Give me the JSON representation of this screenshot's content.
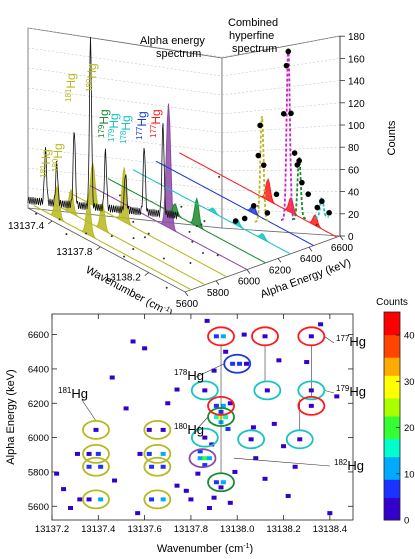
{
  "chart_data": [
    {
      "type": "area",
      "panel": "top-3d",
      "annotations": {
        "alpha_spectrum_line1": "Alpha energy",
        "alpha_spectrum_line2": "spectrum",
        "combined_line1": "Combined",
        "combined_line2": "hyperfine",
        "combined_line3": "spectrum"
      },
      "x_axis": {
        "label": "Wavenumber (cm",
        "label_sup": "-1",
        "label_close": ")",
        "ticks": [
          "13137.4",
          "13137.8",
          "13138.2"
        ]
      },
      "y_axis": {
        "label": "Alpha Energy (keV)",
        "ticks": [
          "5600",
          "5800",
          "6000",
          "6200",
          "6400",
          "6600"
        ]
      },
      "z_axis": {
        "label": "Counts",
        "ticks": [
          "0",
          "20",
          "40",
          "60",
          "80",
          "100",
          "120",
          "140",
          "160",
          "180"
        ],
        "range": [
          0,
          180
        ]
      },
      "isotope_labels": [
        "181Hg",
        "180Hg",
        "181Hg",
        "180Hg",
        "179Hg",
        "179Hg",
        "178Hg",
        "177Hg",
        "177Hg"
      ],
      "series": [
        {
          "color": "#b8b820",
          "alpha_energy": 5640
        },
        {
          "color": "#b8b820",
          "alpha_energy": 5730
        },
        {
          "color": "#b8b820",
          "alpha_energy": 5870
        },
        {
          "color": "#8d4aa6",
          "alpha_energy": 6000
        },
        {
          "color": "#1c8a2e",
          "alpha_energy": 6120
        },
        {
          "color": "#17c3c3",
          "alpha_energy": 6280
        },
        {
          "color": "#1a38d6",
          "alpha_energy": 6430
        },
        {
          "color": "#ff1a1a",
          "alpha_energy": 6580
        }
      ],
      "combined_peaks": [
        {
          "wavenumber": 13137.64,
          "counts": 105,
          "fit_color": "#b8b820"
        },
        {
          "wavenumber": 13137.93,
          "counts": 172,
          "fit_color": "#cc22cc"
        },
        {
          "wavenumber": 13138.05,
          "counts": 62,
          "fit_color": "#1c8a2e"
        },
        {
          "wavenumber": 13138.3,
          "counts": 20,
          "fit_color": "#17c3c3"
        }
      ]
    },
    {
      "type": "heatmap",
      "panel": "bottom-2d",
      "xlabel": "Wavenumber (cm",
      "xlabel_sup": "-1",
      "xlabel_close": ")",
      "ylabel": "Alpha Energy (keV)",
      "xlim": [
        13137.2,
        13138.5
      ],
      "ylim": [
        5520,
        6720
      ],
      "x_ticks": [
        "13137.2",
        "13137.4",
        "13137.6",
        "13137.8",
        "13138.0",
        "13138.2",
        "13138.4"
      ],
      "y_ticks": [
        "5600",
        "5800",
        "6000",
        "6200",
        "6400",
        "6600"
      ],
      "colorbar": {
        "title": "Counts",
        "ticks": [
          "0",
          "10",
          "20",
          "30",
          "40"
        ],
        "range": [
          0,
          45
        ],
        "colors": [
          "#3300cc",
          "#1a33ff",
          "#00aaff",
          "#00ffcc",
          "#33ff33",
          "#aaff00",
          "#ffff00",
          "#ffaa00",
          "#ff4400",
          "#ff0000"
        ]
      },
      "labels": [
        {
          "mass": "177",
          "element": "Hg"
        },
        {
          "mass": "178",
          "element": "Hg"
        },
        {
          "mass": "179",
          "element": "Hg"
        },
        {
          "mass": "180",
          "element": "Hg"
        },
        {
          "mass": "181",
          "element": "Hg"
        },
        {
          "mass": "182",
          "element": "Hg"
        }
      ],
      "circles": [
        {
          "x": 13137.39,
          "y": 6045,
          "isotope": "181",
          "color": "#b8b820"
        },
        {
          "x": 13137.39,
          "y": 5905,
          "isotope": "181",
          "color": "#b8b820"
        },
        {
          "x": 13137.39,
          "y": 5830,
          "isotope": "181",
          "color": "#b8b820"
        },
        {
          "x": 13137.39,
          "y": 5640,
          "isotope": "181",
          "color": "#b8b820"
        },
        {
          "x": 13137.655,
          "y": 6045,
          "isotope": "181",
          "color": "#b8b820"
        },
        {
          "x": 13137.655,
          "y": 5905,
          "isotope": "181",
          "color": "#b8b820"
        },
        {
          "x": 13137.655,
          "y": 5830,
          "isotope": "181",
          "color": "#b8b820"
        },
        {
          "x": 13137.655,
          "y": 5640,
          "isotope": "181",
          "color": "#b8b820"
        },
        {
          "x": 13137.85,
          "y": 5880,
          "isotope": "180",
          "color": "#8d4aa6"
        },
        {
          "x": 13137.93,
          "y": 6120,
          "isotope": "180",
          "color": "#1c8a2e"
        },
        {
          "x": 13137.93,
          "y": 5740,
          "isotope": "180",
          "color": "#1c8a2e"
        },
        {
          "x": 13137.86,
          "y": 6000,
          "isotope": "179",
          "color": "#17c3c3"
        },
        {
          "x": 13137.86,
          "y": 6275,
          "isotope": "179",
          "color": "#17c3c3"
        },
        {
          "x": 13138.06,
          "y": 5990,
          "isotope": "179",
          "color": "#17c3c3"
        },
        {
          "x": 13138.13,
          "y": 6275,
          "isotope": "179",
          "color": "#17c3c3"
        },
        {
          "x": 13138.32,
          "y": 6275,
          "isotope": "179",
          "color": "#17c3c3"
        },
        {
          "x": 13138.27,
          "y": 5990,
          "isotope": "179",
          "color": "#17c3c3"
        },
        {
          "x": 13138.0,
          "y": 6430,
          "isotope": "178",
          "color": "#1a38d6"
        },
        {
          "x": 13137.93,
          "y": 6590,
          "isotope": "177",
          "color": "#ff1a1a"
        },
        {
          "x": 13137.93,
          "y": 6185,
          "isotope": "177",
          "color": "#ff1a1a"
        },
        {
          "x": 13138.12,
          "y": 6590,
          "isotope": "177",
          "color": "#ff1a1a"
        },
        {
          "x": 13138.32,
          "y": 6590,
          "isotope": "177",
          "color": "#ff1a1a"
        },
        {
          "x": 13138.32,
          "y": 6185,
          "isotope": "177",
          "color": "#ff1a1a"
        }
      ],
      "cells": [
        {
          "x": 13137.39,
          "y": 6045,
          "counts": 3
        },
        {
          "x": 13137.36,
          "y": 5905,
          "counts": 4
        },
        {
          "x": 13137.4,
          "y": 5905,
          "counts": 8
        },
        {
          "x": 13137.36,
          "y": 5830,
          "counts": 5
        },
        {
          "x": 13137.41,
          "y": 5830,
          "counts": 7
        },
        {
          "x": 13137.36,
          "y": 5640,
          "counts": 4
        },
        {
          "x": 13137.41,
          "y": 5640,
          "counts": 9
        },
        {
          "x": 13137.31,
          "y": 5905,
          "counts": 2
        },
        {
          "x": 13137.32,
          "y": 5640,
          "counts": 2
        },
        {
          "x": 13137.62,
          "y": 6045,
          "counts": 3
        },
        {
          "x": 13137.68,
          "y": 6045,
          "counts": 4
        },
        {
          "x": 13137.62,
          "y": 5905,
          "counts": 6
        },
        {
          "x": 13137.68,
          "y": 5905,
          "counts": 9
        },
        {
          "x": 13137.63,
          "y": 5830,
          "counts": 5
        },
        {
          "x": 13137.68,
          "y": 5830,
          "counts": 8
        },
        {
          "x": 13137.63,
          "y": 5640,
          "counts": 6
        },
        {
          "x": 13137.68,
          "y": 5640,
          "counts": 10
        },
        {
          "x": 13137.58,
          "y": 5905,
          "counts": 2
        },
        {
          "x": 13137.84,
          "y": 5880,
          "counts": 12
        },
        {
          "x": 13137.86,
          "y": 5880,
          "counts": 20
        },
        {
          "x": 13137.88,
          "y": 5880,
          "counts": 10
        },
        {
          "x": 13137.86,
          "y": 5840,
          "counts": 6
        },
        {
          "x": 13137.84,
          "y": 5920,
          "counts": 5
        },
        {
          "x": 13137.91,
          "y": 6120,
          "counts": 15
        },
        {
          "x": 13137.93,
          "y": 6120,
          "counts": 28
        },
        {
          "x": 13137.95,
          "y": 6120,
          "counts": 14
        },
        {
          "x": 13137.93,
          "y": 6090,
          "counts": 9
        },
        {
          "x": 13137.93,
          "y": 6150,
          "counts": 8
        },
        {
          "x": 13137.91,
          "y": 5740,
          "counts": 6
        },
        {
          "x": 13137.94,
          "y": 5740,
          "counts": 11
        },
        {
          "x": 13137.93,
          "y": 5710,
          "counts": 4
        },
        {
          "x": 13137.86,
          "y": 6000,
          "counts": 3
        },
        {
          "x": 13137.86,
          "y": 6275,
          "counts": 3
        },
        {
          "x": 13138.06,
          "y": 5990,
          "counts": 3
        },
        {
          "x": 13138.13,
          "y": 6275,
          "counts": 4
        },
        {
          "x": 13138.32,
          "y": 6275,
          "counts": 3
        },
        {
          "x": 13138.27,
          "y": 5990,
          "counts": 3
        },
        {
          "x": 13137.98,
          "y": 6430,
          "counts": 5
        },
        {
          "x": 13138.01,
          "y": 6430,
          "counts": 8
        },
        {
          "x": 13138.04,
          "y": 6430,
          "counts": 4
        },
        {
          "x": 13137.91,
          "y": 6590,
          "counts": 5
        },
        {
          "x": 13137.94,
          "y": 6590,
          "counts": 9
        },
        {
          "x": 13137.91,
          "y": 6185,
          "counts": 6
        },
        {
          "x": 13137.94,
          "y": 6185,
          "counts": 10
        },
        {
          "x": 13138.12,
          "y": 6590,
          "counts": 4
        },
        {
          "x": 13138.32,
          "y": 6590,
          "counts": 3
        },
        {
          "x": 13138.32,
          "y": 6185,
          "counts": 4
        },
        {
          "x": 13137.22,
          "y": 5790,
          "counts": 2
        },
        {
          "x": 13137.28,
          "y": 5590,
          "counts": 2
        },
        {
          "x": 13137.47,
          "y": 5750,
          "counts": 2
        },
        {
          "x": 13137.52,
          "y": 6170,
          "counts": 2
        },
        {
          "x": 13137.55,
          "y": 6560,
          "counts": 2
        },
        {
          "x": 13137.46,
          "y": 6350,
          "counts": 2
        },
        {
          "x": 13137.6,
          "y": 6520,
          "counts": 2
        },
        {
          "x": 13137.74,
          "y": 5720,
          "counts": 3
        },
        {
          "x": 13137.78,
          "y": 5690,
          "counts": 2
        },
        {
          "x": 13137.8,
          "y": 5640,
          "counts": 3
        },
        {
          "x": 13137.83,
          "y": 5790,
          "counts": 4
        },
        {
          "x": 13137.88,
          "y": 5590,
          "counts": 3
        },
        {
          "x": 13137.9,
          "y": 5650,
          "counts": 4
        },
        {
          "x": 13137.97,
          "y": 5620,
          "counts": 3
        },
        {
          "x": 13137.99,
          "y": 5800,
          "counts": 3
        },
        {
          "x": 13137.89,
          "y": 5960,
          "counts": 4
        },
        {
          "x": 13137.96,
          "y": 6050,
          "counts": 5
        },
        {
          "x": 13137.97,
          "y": 6200,
          "counts": 4
        },
        {
          "x": 13137.9,
          "y": 6390,
          "counts": 3
        },
        {
          "x": 13137.95,
          "y": 6500,
          "counts": 2
        },
        {
          "x": 13138.03,
          "y": 6600,
          "counts": 2
        },
        {
          "x": 13138.08,
          "y": 5880,
          "counts": 2
        },
        {
          "x": 13138.12,
          "y": 5760,
          "counts": 2
        },
        {
          "x": 13138.16,
          "y": 6080,
          "counts": 2
        },
        {
          "x": 13138.22,
          "y": 5660,
          "counts": 2
        },
        {
          "x": 13138.25,
          "y": 5830,
          "counts": 2
        },
        {
          "x": 13138.3,
          "y": 6440,
          "counts": 2
        },
        {
          "x": 13138.36,
          "y": 6660,
          "counts": 2
        },
        {
          "x": 13138.4,
          "y": 5560,
          "counts": 2
        },
        {
          "x": 13138.43,
          "y": 6240,
          "counts": 2
        },
        {
          "x": 13137.25,
          "y": 5700,
          "counts": 2
        },
        {
          "x": 13137.7,
          "y": 6200,
          "counts": 2
        },
        {
          "x": 13137.74,
          "y": 6280,
          "counts": 2
        },
        {
          "x": 13138.18,
          "y": 6450,
          "counts": 2
        },
        {
          "x": 13137.57,
          "y": 5560,
          "counts": 2
        },
        {
          "x": 13137.87,
          "y": 6680,
          "counts": 2
        },
        {
          "x": 13138.07,
          "y": 6060,
          "counts": 2
        },
        {
          "x": 13138.2,
          "y": 5950,
          "counts": 2
        }
      ]
    }
  ]
}
